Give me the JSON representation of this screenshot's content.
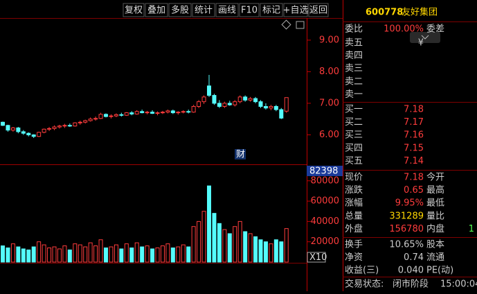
{
  "toolbar": [
    "复权",
    "叠加",
    "多股",
    "统计",
    "画线",
    "F10",
    "标记",
    "+自选",
    "返回"
  ],
  "chart_data": {
    "type": "candlestick",
    "marker": "财",
    "ylim": [
      5.11,
      9.7
    ],
    "yticks": [
      {
        "value": 9,
        "label": "9.00"
      },
      {
        "value": 8,
        "label": "8.00"
      },
      {
        "value": 7,
        "label": "7.00"
      },
      {
        "value": 6,
        "label": "6.00"
      }
    ],
    "up_color": "#ff3c3c",
    "down_color": "#54fcfc",
    "candles": [
      [
        6.4,
        6.42,
        6.28,
        6.3
      ],
      [
        6.3,
        6.32,
        6.1,
        6.15
      ],
      [
        6.15,
        6.25,
        6.1,
        6.22
      ],
      [
        6.22,
        6.25,
        6.05,
        6.1
      ],
      [
        6.1,
        6.15,
        6.0,
        6.05
      ],
      [
        6.05,
        6.08,
        5.95,
        6.0
      ],
      [
        6.0,
        6.02,
        5.9,
        5.95
      ],
      [
        5.95,
        6.1,
        5.93,
        6.08
      ],
      [
        6.08,
        6.2,
        6.05,
        6.18
      ],
      [
        6.18,
        6.25,
        6.12,
        6.2
      ],
      [
        6.2,
        6.3,
        6.15,
        6.25
      ],
      [
        6.25,
        6.32,
        6.2,
        6.28
      ],
      [
        6.28,
        6.35,
        6.22,
        6.3
      ],
      [
        6.3,
        6.36,
        6.25,
        6.28
      ],
      [
        6.28,
        6.4,
        6.26,
        6.38
      ],
      [
        6.38,
        6.45,
        6.32,
        6.4
      ],
      [
        6.4,
        6.48,
        6.36,
        6.45
      ],
      [
        6.45,
        6.55,
        6.42,
        6.5
      ],
      [
        6.5,
        6.58,
        6.45,
        6.52
      ],
      [
        6.52,
        6.7,
        6.5,
        6.65
      ],
      [
        6.65,
        6.68,
        6.55,
        6.58
      ],
      [
        6.58,
        6.65,
        6.52,
        6.6
      ],
      [
        6.6,
        6.68,
        6.56,
        6.64
      ],
      [
        6.64,
        6.7,
        6.58,
        6.62
      ],
      [
        6.62,
        6.72,
        6.6,
        6.7
      ],
      [
        6.7,
        6.75,
        6.62,
        6.66
      ],
      [
        6.66,
        6.78,
        6.64,
        6.74
      ],
      [
        6.74,
        6.8,
        6.68,
        6.7
      ],
      [
        6.7,
        6.76,
        6.65,
        6.72
      ],
      [
        6.72,
        6.78,
        6.66,
        6.68
      ],
      [
        6.68,
        6.74,
        6.62,
        6.7
      ],
      [
        6.7,
        6.76,
        6.66,
        6.72
      ],
      [
        6.72,
        6.8,
        6.68,
        6.76
      ],
      [
        6.76,
        6.8,
        6.66,
        6.7
      ],
      [
        6.7,
        6.75,
        6.64,
        6.72
      ],
      [
        6.72,
        6.78,
        6.68,
        6.74
      ],
      [
        6.74,
        6.8,
        6.68,
        6.72
      ],
      [
        6.72,
        6.95,
        6.7,
        6.9
      ],
      [
        6.9,
        7.1,
        6.85,
        7.05
      ],
      [
        7.05,
        7.25,
        6.98,
        7.2
      ],
      [
        7.55,
        7.9,
        7.2,
        7.25
      ],
      [
        7.25,
        7.3,
        6.95,
        7.0
      ],
      [
        7.0,
        7.1,
        6.85,
        6.9
      ],
      [
        6.9,
        7.05,
        6.85,
        7.0
      ],
      [
        7.0,
        7.08,
        6.92,
        6.95
      ],
      [
        6.95,
        7.1,
        6.9,
        7.05
      ],
      [
        7.05,
        7.25,
        7.0,
        7.2
      ],
      [
        7.2,
        7.25,
        7.05,
        7.1
      ],
      [
        7.1,
        7.2,
        7.05,
        7.15
      ],
      [
        7.15,
        7.2,
        7.0,
        7.05
      ],
      [
        7.05,
        7.1,
        6.85,
        6.9
      ],
      [
        6.9,
        7.0,
        6.8,
        6.85
      ],
      [
        6.85,
        6.95,
        6.78,
        6.9
      ],
      [
        6.9,
        6.95,
        6.75,
        6.8
      ],
      [
        6.8,
        6.85,
        6.5,
        6.53
      ],
      [
        6.75,
        7.18,
        6.7,
        7.18
      ]
    ],
    "volume": {
      "top_label": "82398",
      "unit_label": "X10",
      "ylim": [
        0,
        92800
      ],
      "yticks": [
        80000,
        60000,
        40000,
        20000
      ],
      "values": [
        16000,
        14000,
        18000,
        15000,
        13000,
        12000,
        15000,
        20000,
        17000,
        14000,
        15000,
        13000,
        16000,
        12000,
        18000,
        17000,
        15000,
        19000,
        16000,
        22000,
        14000,
        15000,
        17000,
        13000,
        18000,
        14000,
        19000,
        15000,
        16000,
        13000,
        14000,
        16000,
        18000,
        14000,
        15000,
        17000,
        15000,
        35000,
        40000,
        50000,
        75000,
        48000,
        38000,
        32000,
        28000,
        35000,
        40000,
        30000,
        28000,
        25000,
        22000,
        20000,
        18000,
        22000,
        20000,
        33000
      ]
    }
  },
  "quote": {
    "code": "600778",
    "name": "友好集团",
    "ratio": [
      "委比",
      "100.00%",
      "委差"
    ],
    "sell": [
      [
        "卖五",
        "¥"
      ],
      [
        "卖四"
      ],
      [
        "卖三"
      ],
      [
        "卖二"
      ],
      [
        "卖一"
      ]
    ],
    "buy": [
      [
        "买一",
        "7.18"
      ],
      [
        "买二",
        "7.17"
      ],
      [
        "买三",
        "7.16"
      ],
      [
        "买四",
        "7.15"
      ],
      [
        "买五",
        "7.14"
      ]
    ],
    "stats": [
      [
        "现价",
        "7.18",
        "今开"
      ],
      [
        "涨跌",
        "0.65",
        "最高"
      ],
      [
        "涨幅",
        "9.95%",
        "最低"
      ],
      [
        "总量",
        "331289",
        "量比"
      ],
      [
        "外盘",
        "156780",
        "内盘",
        "1"
      ]
    ],
    "extra": [
      [
        "换手",
        "10.65%",
        "股本"
      ],
      [
        "净资",
        "0.74",
        "流通"
      ],
      [
        "收益(三)",
        "0.040",
        "PE(动)"
      ]
    ],
    "status_label": "交易状态:",
    "status": "闭市阶段",
    "time": "15:00:04"
  }
}
